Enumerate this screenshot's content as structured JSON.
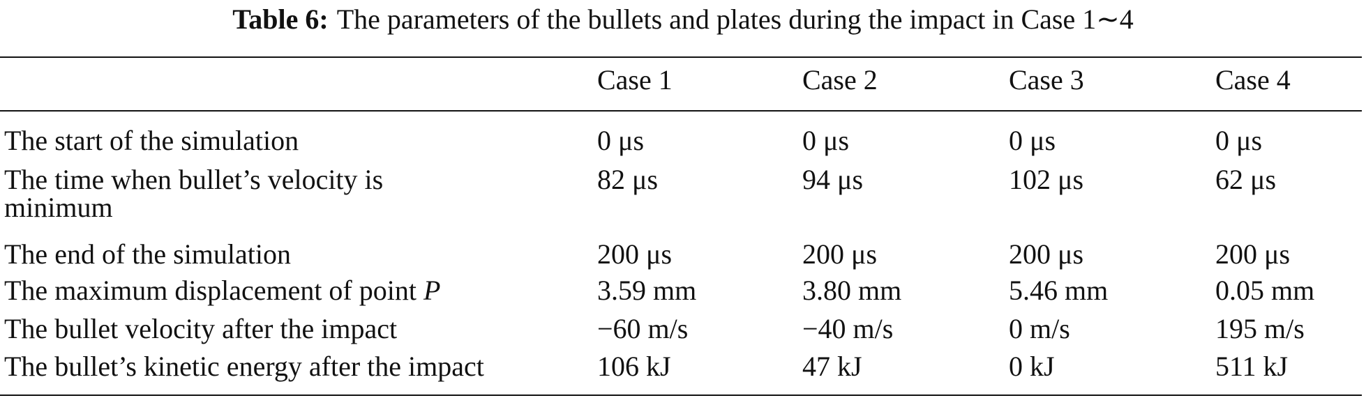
{
  "caption": {
    "label": "Table 6:",
    "text": "The parameters of the bullets and plates during the impact in Case 1∼4"
  },
  "table": {
    "header": [
      "Case 1",
      "Case 2",
      "Case 3",
      "Case 4"
    ],
    "rows": [
      {
        "label": "The start of the simulation",
        "cells": [
          "0 μs",
          "0 μs",
          "0 μs",
          "0 μs"
        ]
      },
      {
        "label": "The time when bullet’s velocity is minimum",
        "cells": [
          "82 μs",
          "94 μs",
          "102 μs",
          "62 μs"
        ]
      },
      {
        "label": "The end of the simulation",
        "cells": [
          "200 μs",
          "200 μs",
          "200 μs",
          "200 μs"
        ]
      },
      {
        "label": "The maximum displacement of point",
        "label_italic": "P",
        "cells": [
          "3.59 mm",
          "3.80 mm",
          "5.46 mm",
          "0.05 mm"
        ]
      },
      {
        "label": "The bullet velocity after the impact",
        "cells": [
          "−60 m/s",
          "−40 m/s",
          "0 m/s",
          "195 m/s"
        ]
      },
      {
        "label": "The bullet’s kinetic energy after the impact",
        "cells": [
          "106 kJ",
          "47 kJ",
          "0 kJ",
          "511 kJ"
        ]
      }
    ]
  }
}
